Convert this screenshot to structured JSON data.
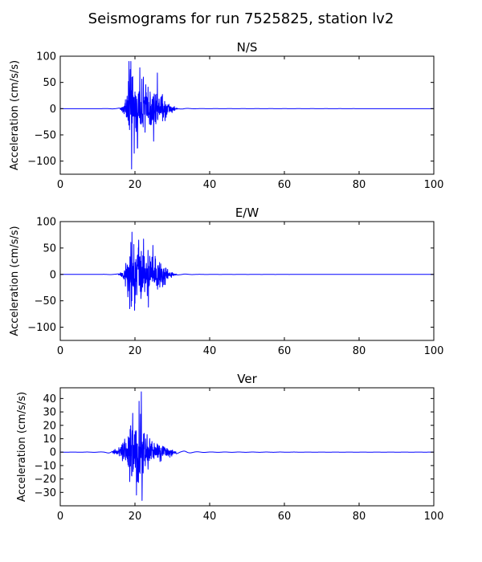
{
  "chart_data": {
    "type": "line",
    "title": "Seismograms for run 7525825, station lv2",
    "line_color": "#0000ff",
    "panels": [
      {
        "title": "N/S",
        "ylabel": "Acceleration (cm/s/s)",
        "xlim": [
          0,
          100
        ],
        "ylim": [
          -125,
          100
        ],
        "xticks": [
          0,
          20,
          40,
          60,
          80,
          100
        ],
        "yticks": [
          100,
          50,
          0,
          -50,
          -100
        ],
        "envelope": [
          [
            0,
            0
          ],
          [
            10,
            0
          ],
          [
            12.5,
            0.3
          ],
          [
            14,
            0.7
          ],
          [
            15,
            0.8
          ],
          [
            16,
            2
          ],
          [
            16.8,
            8
          ],
          [
            17.5,
            30
          ],
          [
            18.2,
            70
          ],
          [
            18.7,
            95
          ],
          [
            19.3,
            100
          ],
          [
            20,
            85
          ],
          [
            21,
            80
          ],
          [
            22,
            72
          ],
          [
            23,
            62
          ],
          [
            24,
            50
          ],
          [
            25,
            42
          ],
          [
            26,
            38
          ],
          [
            27,
            34
          ],
          [
            28,
            30
          ],
          [
            29,
            18
          ],
          [
            30,
            8
          ],
          [
            31,
            3
          ],
          [
            32,
            1
          ],
          [
            33,
            1.5
          ],
          [
            34,
            0.8
          ],
          [
            36,
            0.3
          ],
          [
            40,
            0.15
          ],
          [
            100,
            0
          ]
        ],
        "extremes": [
          [
            18.4,
            90
          ],
          [
            18.9,
            90
          ],
          [
            19.1,
            -115
          ],
          [
            19.8,
            -85
          ],
          [
            21.3,
            78
          ],
          [
            20.7,
            -75
          ],
          [
            26.0,
            68
          ],
          [
            25.0,
            -62
          ]
        ]
      },
      {
        "title": "E/W",
        "ylabel": "Acceleration (cm/s/s)",
        "xlim": [
          0,
          100
        ],
        "ylim": [
          -125,
          100
        ],
        "xticks": [
          0,
          20,
          40,
          60,
          80,
          100
        ],
        "yticks": [
          100,
          50,
          0,
          -50,
          -100
        ],
        "envelope": [
          [
            0,
            0
          ],
          [
            10,
            0
          ],
          [
            13,
            0.5
          ],
          [
            15,
            0.8
          ],
          [
            16,
            3
          ],
          [
            16.8,
            12
          ],
          [
            17.5,
            35
          ],
          [
            18.3,
            60
          ],
          [
            19,
            80
          ],
          [
            19.7,
            75
          ],
          [
            20.5,
            70
          ],
          [
            21.5,
            68
          ],
          [
            22.5,
            62
          ],
          [
            23.5,
            55
          ],
          [
            24.5,
            48
          ],
          [
            25.5,
            42
          ],
          [
            26.5,
            35
          ],
          [
            27.5,
            28
          ],
          [
            28.5,
            18
          ],
          [
            29.5,
            8
          ],
          [
            30.5,
            3
          ],
          [
            32,
            1
          ],
          [
            33,
            1.5
          ],
          [
            34,
            0.8
          ],
          [
            36,
            0.3
          ],
          [
            40,
            0.15
          ],
          [
            100,
            0
          ]
        ],
        "extremes": [
          [
            19.2,
            80
          ],
          [
            18.6,
            -65
          ],
          [
            22.3,
            67
          ],
          [
            19.9,
            -68
          ],
          [
            21.0,
            65
          ],
          [
            23.6,
            -62
          ],
          [
            24.8,
            55
          ]
        ]
      },
      {
        "title": "Ver",
        "ylabel": "Acceleration (cm/s/s)",
        "xlim": [
          0,
          100
        ],
        "ylim": [
          -40,
          48
        ],
        "xticks": [
          0,
          20,
          40,
          60,
          80,
          100
        ],
        "yticks": [
          40,
          30,
          20,
          10,
          0,
          -10,
          -20,
          -30
        ],
        "envelope": [
          [
            0,
            0
          ],
          [
            10,
            0.2
          ],
          [
            11.5,
            0.3
          ],
          [
            12.5,
            0.8
          ],
          [
            13.5,
            1.5
          ],
          [
            14.5,
            2.5
          ],
          [
            15.5,
            4
          ],
          [
            16.5,
            8
          ],
          [
            17.5,
            14
          ],
          [
            18.5,
            22
          ],
          [
            19.2,
            30
          ],
          [
            20,
            33
          ],
          [
            20.8,
            36
          ],
          [
            21.5,
            38
          ],
          [
            22,
            30
          ],
          [
            22.8,
            22
          ],
          [
            23.5,
            16
          ],
          [
            24.5,
            12
          ],
          [
            25.5,
            10
          ],
          [
            26.5,
            9
          ],
          [
            27.5,
            8
          ],
          [
            28.5,
            6
          ],
          [
            29.5,
            4
          ],
          [
            30.5,
            2.5
          ],
          [
            31.5,
            1.5
          ],
          [
            32.5,
            1
          ],
          [
            33.5,
            1.5
          ],
          [
            34.5,
            1
          ],
          [
            36,
            0.5
          ],
          [
            40,
            0.2
          ],
          [
            100,
            0
          ]
        ],
        "extremes": [
          [
            19.4,
            29
          ],
          [
            21.7,
            45
          ],
          [
            21.1,
            38
          ],
          [
            21.9,
            -36
          ],
          [
            20.4,
            -32
          ],
          [
            18.6,
            -22
          ]
        ]
      }
    ]
  }
}
